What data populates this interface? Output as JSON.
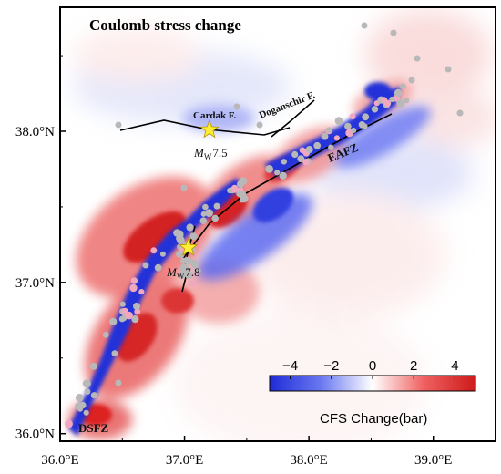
{
  "map": {
    "title": "Coulomb stress change",
    "colors": {
      "negative": "#1f2bd6",
      "positive": "#d81e1e",
      "zero": "#ffffff",
      "aftershock": "#b8b8b8",
      "aftershock_pink": "#f0a8c0",
      "star": "#ffee33",
      "fault_line": "#000000"
    },
    "x_axis": {
      "ticks": [
        "36.0°E",
        "37.0°E",
        "38.0°E",
        "39.0°E"
      ],
      "range": [
        36.0,
        39.5
      ]
    },
    "y_axis": {
      "ticks": [
        "36.0°N",
        "37.0°N",
        "38.0°N"
      ],
      "range": [
        35.95,
        38.82
      ]
    },
    "faults": [
      {
        "label": "Cardak F."
      },
      {
        "label": "Doganschir F."
      }
    ],
    "zones": [
      {
        "label": "EAFZ"
      },
      {
        "label": "DSFZ"
      }
    ],
    "epicenters": [
      {
        "mag_prefix": "M",
        "mag_sub": "W",
        "mag_value": "7.5",
        "lon": 37.2,
        "lat": 38.01
      },
      {
        "mag_prefix": "M",
        "mag_sub": "W",
        "mag_value": "7.8",
        "lon": 37.03,
        "lat": 37.23
      }
    ],
    "colorbar": {
      "title": "CFS Change(bar)",
      "ticks": [
        "−4",
        "−2",
        "0",
        "2",
        "4"
      ],
      "range": [
        -5,
        5
      ]
    }
  }
}
